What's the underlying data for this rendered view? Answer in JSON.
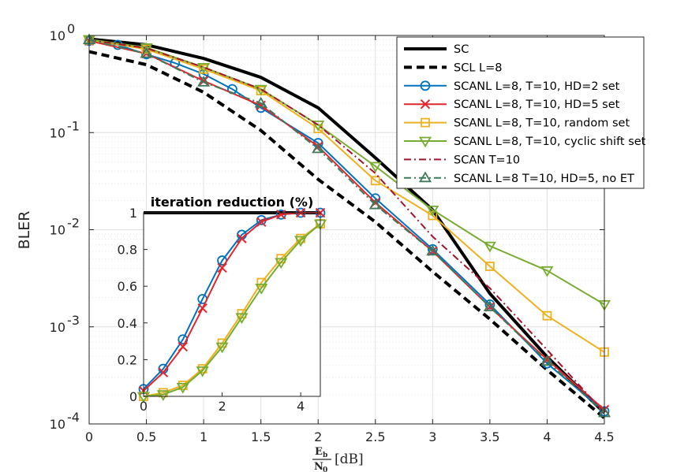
{
  "chart_data": [
    {
      "type": "line",
      "ylabel": "BLER",
      "xlabel": {
        "fraction_num": "E",
        "fraction_num_sub": "b",
        "fraction_den": "N",
        "fraction_den_sub": "0",
        "unit": "[dB]"
      },
      "yscale": "log",
      "xlim": [
        0,
        4.5
      ],
      "ylim": [
        0.0001,
        1
      ],
      "x_ticks": [
        0,
        0.5,
        1,
        1.5,
        2,
        2.5,
        3,
        3.5,
        4,
        4.5
      ],
      "x_tick_labels": [
        "0",
        "0.5",
        "1",
        "1.5",
        "2",
        "2.5",
        "3",
        "3.5",
        "4",
        "4.5"
      ],
      "y_ticks": [
        0.0001,
        0.001,
        0.01,
        0.1,
        1
      ],
      "y_tick_labels": [
        {
          "base": "10",
          "exp": "-4"
        },
        {
          "base": "10",
          "exp": "-3"
        },
        {
          "base": "10",
          "exp": "-2"
        },
        {
          "base": "10",
          "exp": "-1"
        },
        {
          "base": "10",
          "exp": "0"
        }
      ],
      "grid": true,
      "legend_position": "top-right",
      "series": [
        {
          "name": "SC",
          "color": "#000000",
          "dash": "solid",
          "marker": "none",
          "width": 4,
          "x": [
            0,
            0.5,
            1,
            1.5,
            2,
            2.5,
            3,
            3.5,
            4,
            4.5
          ],
          "y": [
            0.92,
            0.8,
            0.58,
            0.37,
            0.18,
            0.055,
            0.016,
            0.0022,
            0.00049,
            0.00013
          ]
        },
        {
          "name": "SCL L=8",
          "color": "#000000",
          "dash": "dashed",
          "marker": "none",
          "width": 4,
          "x": [
            0,
            0.5,
            1,
            1.5,
            2,
            2.5,
            3,
            3.5,
            4,
            4.5
          ],
          "y": [
            0.68,
            0.5,
            0.26,
            0.105,
            0.033,
            0.012,
            0.0037,
            0.0012,
            0.00036,
            0.000115
          ]
        },
        {
          "name": "SCANL L=8, T=10, HD=2 set",
          "color": "#0072BD",
          "dash": "solid",
          "marker": "circle",
          "width": 2,
          "x": [
            0,
            0.25,
            0.5,
            0.75,
            1,
            1.25,
            1.5,
            2,
            2.5,
            3,
            3.5,
            4,
            4.5
          ],
          "y": [
            0.88,
            0.8,
            0.64,
            0.52,
            0.4,
            0.28,
            0.18,
            0.078,
            0.021,
            0.0063,
            0.0017,
            0.00042,
            0.000135
          ]
        },
        {
          "name": "SCANL L=8, T=10, HD=5 set",
          "color": "#E3262B",
          "dash": "solid",
          "marker": "x",
          "width": 2,
          "x": [
            0,
            0.5,
            1,
            1.5,
            2,
            2.5,
            3,
            3.5,
            4,
            4.5
          ],
          "y": [
            0.88,
            0.65,
            0.34,
            0.19,
            0.072,
            0.019,
            0.006,
            0.0016,
            0.00046,
            0.00014
          ]
        },
        {
          "name": "SCANL L=8, T=10, random set",
          "color": "#EDB120",
          "dash": "solid",
          "marker": "square",
          "width": 2,
          "x": [
            0,
            0.5,
            1,
            1.5,
            2,
            2.5,
            3,
            3.5,
            4,
            4.5
          ],
          "y": [
            0.9,
            0.72,
            0.45,
            0.27,
            0.11,
            0.032,
            0.014,
            0.0042,
            0.0013,
            0.00055
          ]
        },
        {
          "name": "SCANL L=8, T=10, cyclic shift set",
          "color": "#77AC30",
          "dash": "solid",
          "marker": "triangle-down",
          "width": 2,
          "x": [
            0,
            0.5,
            1,
            1.5,
            2,
            2.5,
            3,
            3.5,
            4,
            4.5
          ],
          "y": [
            0.91,
            0.75,
            0.47,
            0.28,
            0.12,
            0.045,
            0.016,
            0.0068,
            0.0038,
            0.0017
          ]
        },
        {
          "name": "SCAN T=10",
          "color": "#A2142F",
          "dash": "dashdot",
          "marker": "none",
          "width": 2,
          "x": [
            0,
            0.5,
            1,
            1.5,
            2,
            2.5,
            3,
            3.5,
            4,
            4.5
          ],
          "y": [
            0.9,
            0.74,
            0.47,
            0.28,
            0.12,
            0.038,
            0.0085,
            0.0025,
            0.00058,
            0.00013
          ]
        },
        {
          "name": "SCANL L=8 T=10, HD=5, no ET",
          "color": "#3D7A5A",
          "dash": "dashdot",
          "marker": "triangle-up",
          "width": 2,
          "x": [
            0,
            0.5,
            1,
            1.5,
            2,
            2.5,
            3,
            3.5,
            4,
            4.5
          ],
          "y": [
            0.9,
            0.65,
            0.33,
            0.2,
            0.068,
            0.018,
            0.006,
            0.0016,
            0.00044,
            0.00013
          ]
        }
      ]
    },
    {
      "type": "line",
      "title": "iteration reduction (%)",
      "xlim": [
        0,
        4.5
      ],
      "ylim": [
        0,
        1
      ],
      "x_ticks": [
        0,
        2,
        4
      ],
      "x_tick_labels": [
        "0",
        "2",
        "4"
      ],
      "y_ticks": [
        0,
        0.2,
        0.4,
        0.6,
        0.8,
        1
      ],
      "y_tick_labels": [
        "0",
        "0.2",
        "0.4",
        "0.6",
        "0.8",
        "1"
      ],
      "series": [
        {
          "name": "SC",
          "color": "#000000",
          "dash": "solid",
          "marker": "none",
          "width": 4,
          "x": [
            0,
            4.5
          ],
          "y": [
            1,
            1
          ]
        },
        {
          "name": "SCANL L=8, T=10, HD=2 set",
          "color": "#0072BD",
          "dash": "solid",
          "marker": "circle",
          "width": 2,
          "x": [
            0,
            0.5,
            1,
            1.5,
            2,
            2.5,
            3,
            3.5,
            4,
            4.5
          ],
          "y": [
            0.04,
            0.15,
            0.31,
            0.53,
            0.74,
            0.88,
            0.96,
            0.99,
            1.0,
            1.0
          ]
        },
        {
          "name": "SCANL L=8, T=10, HD=5 set",
          "color": "#E3262B",
          "dash": "solid",
          "marker": "x",
          "width": 2,
          "x": [
            0,
            0.5,
            1,
            1.5,
            2,
            2.5,
            3,
            3.5,
            4,
            4.5
          ],
          "y": [
            0.03,
            0.13,
            0.27,
            0.48,
            0.7,
            0.86,
            0.95,
            0.99,
            1.0,
            1.0
          ]
        },
        {
          "name": "SCANL L=8, T=10, random set",
          "color": "#EDB120",
          "dash": "solid",
          "marker": "square",
          "width": 2,
          "x": [
            0,
            0.5,
            1,
            1.5,
            2,
            2.5,
            3,
            3.5,
            4,
            4.5
          ],
          "y": [
            0.0,
            0.02,
            0.06,
            0.15,
            0.29,
            0.45,
            0.62,
            0.75,
            0.86,
            0.94
          ]
        },
        {
          "name": "SCANL L=8, T=10, cyclic shift set",
          "color": "#77AC30",
          "dash": "solid",
          "marker": "triangle-down",
          "width": 2,
          "x": [
            0,
            0.5,
            1,
            1.5,
            2,
            2.5,
            3,
            3.5,
            4,
            4.5
          ],
          "y": [
            0.0,
            0.01,
            0.05,
            0.14,
            0.27,
            0.43,
            0.59,
            0.73,
            0.85,
            0.94
          ]
        }
      ]
    }
  ]
}
